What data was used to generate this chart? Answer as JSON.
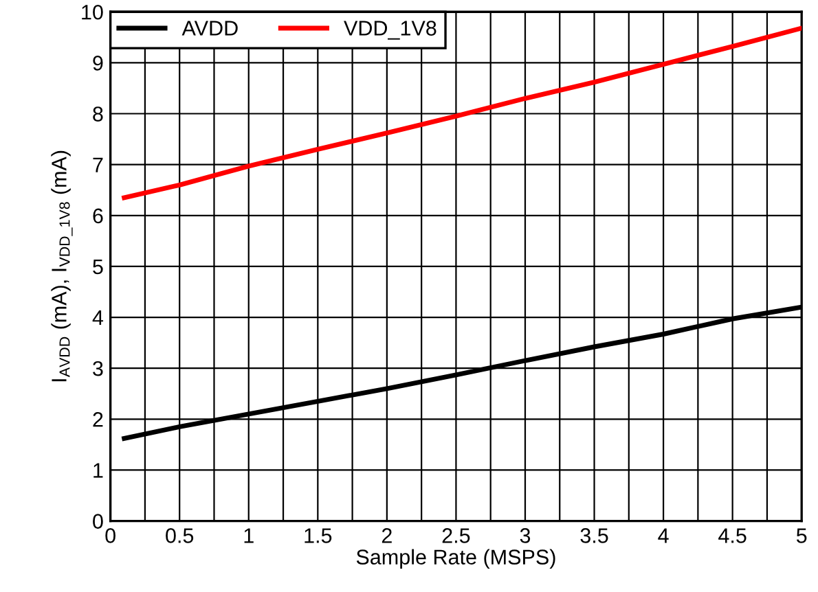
{
  "chart_data": {
    "type": "line",
    "xlabel": "Sample Rate (MSPS)",
    "ylabel": "I$_{AVDD}$ (mA), I$_{VDD_1V8}$ (mA)",
    "x": [
      0.1,
      0.5,
      1,
      1.5,
      2,
      2.5,
      3,
      3.5,
      4,
      4.5,
      5
    ],
    "series": [
      {
        "name": "AVDD",
        "color": "#000000",
        "values": [
          1.62,
          1.85,
          2.1,
          2.35,
          2.6,
          2.87,
          3.15,
          3.42,
          3.67,
          3.97,
          4.2
        ]
      },
      {
        "name": "VDD_1V8",
        "color": "#ff0000",
        "values": [
          6.35,
          6.6,
          6.97,
          7.3,
          7.62,
          7.95,
          8.3,
          8.62,
          8.97,
          9.32,
          9.68
        ]
      }
    ],
    "xlim": [
      0,
      5
    ],
    "ylim": [
      0,
      10
    ],
    "xticks": [
      0,
      {
        "value": 0.25,
        "label": null
      },
      0.5,
      {
        "value": 0.75,
        "label": null
      },
      1,
      {
        "value": 1.25,
        "label": null
      },
      1.5,
      {
        "value": 1.75,
        "label": null
      },
      2,
      {
        "value": 2.25,
        "label": null
      },
      2.5,
      {
        "value": 2.75,
        "label": null
      },
      3,
      {
        "value": 3.25,
        "label": null
      },
      3.5,
      {
        "value": 3.75,
        "label": null
      },
      4,
      {
        "value": 4.25,
        "label": null
      },
      4.5,
      {
        "value": 4.75,
        "label": null
      },
      5
    ],
    "yticks": [
      0,
      1,
      2,
      3,
      4,
      5,
      6,
      7,
      8,
      9,
      10
    ],
    "grid": true,
    "legend": "top left",
    "marker": "none",
    "line_style": "solid"
  }
}
